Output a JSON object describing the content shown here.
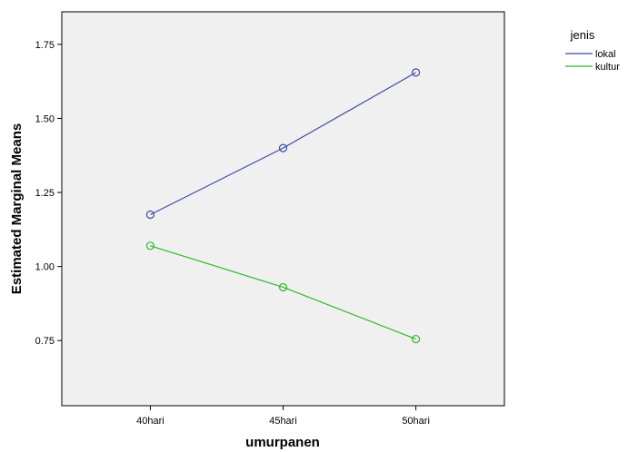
{
  "chart_data": {
    "type": "line",
    "title": "",
    "xlabel": "umurpanen",
    "ylabel": "Estimated Marginal Means",
    "categories": [
      "40hari",
      "45hari",
      "50hari"
    ],
    "ylim": [
      0.53,
      1.86
    ],
    "yticks": [
      0.75,
      1.0,
      1.25,
      1.5,
      1.75
    ],
    "ytick_labels": [
      "0.75",
      "1.00",
      "1.25",
      "1.50",
      "1.75"
    ],
    "grid": false,
    "legend": {
      "title": "jenis",
      "placement": "right-outside-top"
    },
    "series": [
      {
        "name": "lokal",
        "color": "#3b4ba8",
        "values": [
          1.175,
          1.4,
          1.655
        ]
      },
      {
        "name": "kultur",
        "color": "#2eb82e",
        "values": [
          1.07,
          0.93,
          0.755
        ]
      }
    ],
    "plot_background": "#f0f0f0"
  }
}
